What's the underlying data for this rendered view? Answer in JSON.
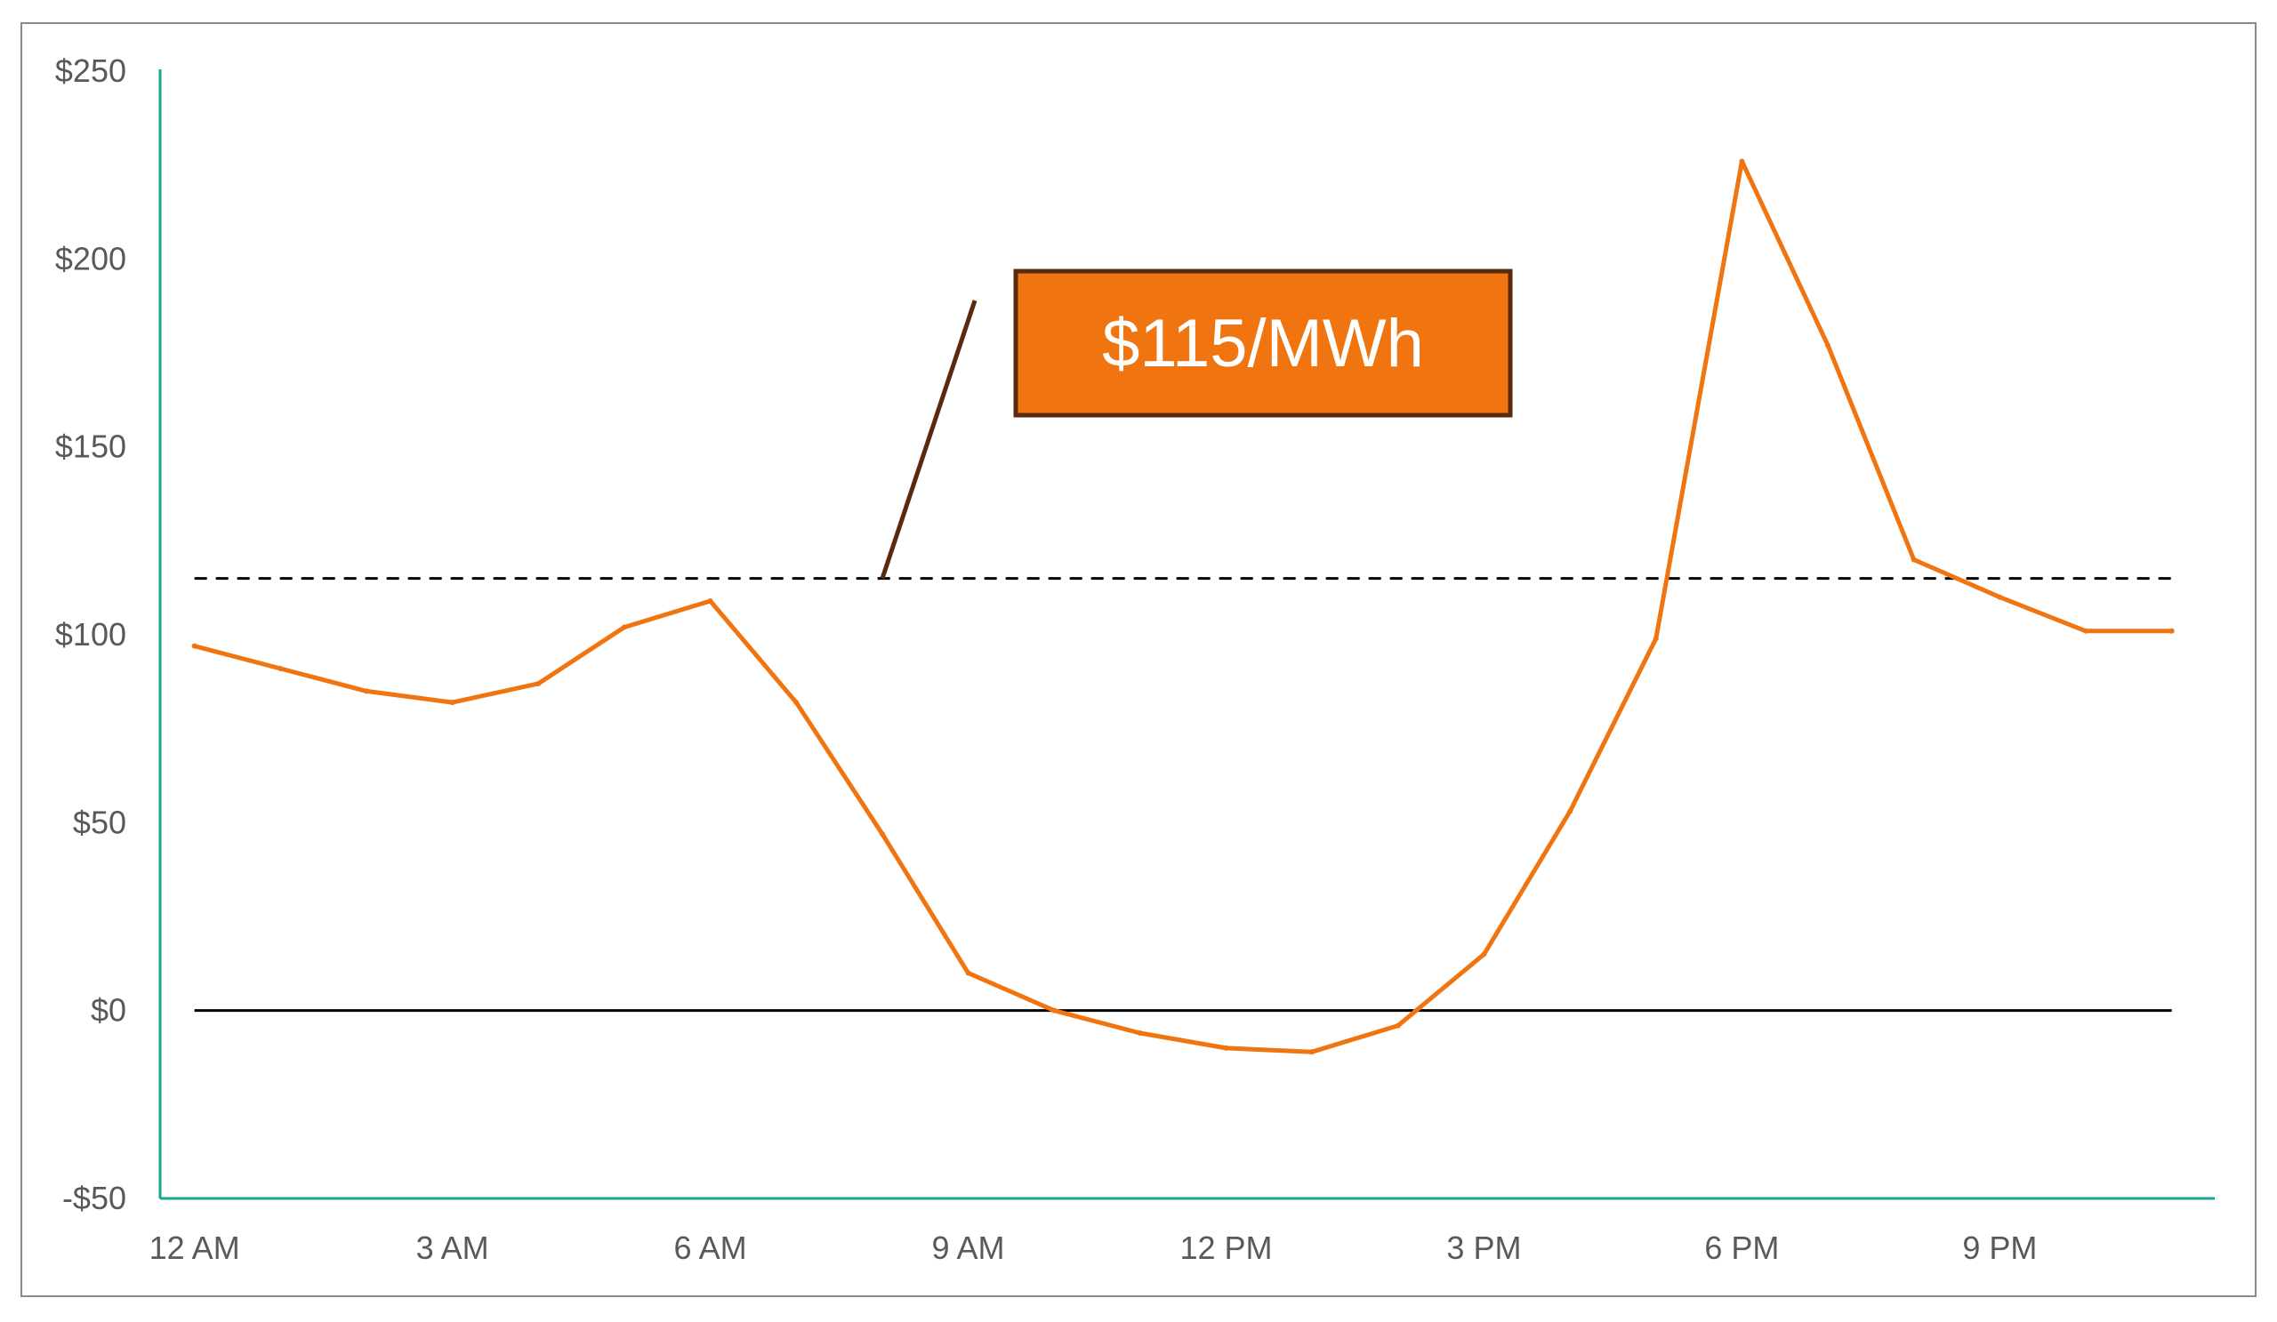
{
  "chart_data": {
    "type": "line",
    "title": "",
    "xlabel": "",
    "ylabel": "",
    "x": [
      0,
      1,
      2,
      3,
      4,
      5,
      6,
      7,
      8,
      9,
      10,
      11,
      12,
      13,
      14,
      15,
      16,
      17,
      18,
      19,
      20,
      21,
      22,
      23
    ],
    "x_tick_labels": [
      {
        "x": 0,
        "label": "12 AM"
      },
      {
        "x": 3,
        "label": "3 AM"
      },
      {
        "x": 6,
        "label": "6 AM"
      },
      {
        "x": 9,
        "label": "9 AM"
      },
      {
        "x": 12,
        "label": "12 PM"
      },
      {
        "x": 15,
        "label": "3 PM"
      },
      {
        "x": 18,
        "label": "6 PM"
      },
      {
        "x": 21,
        "label": "9 PM"
      }
    ],
    "y_ticks": [
      {
        "value": 250,
        "label": "$250"
      },
      {
        "value": 200,
        "label": "$200"
      },
      {
        "value": 150,
        "label": "$150"
      },
      {
        "value": 100,
        "label": "$100"
      },
      {
        "value": 50,
        "label": "$50"
      },
      {
        "value": 0,
        "label": "$0"
      },
      {
        "value": -50,
        "label": "-$50"
      }
    ],
    "ylim": [
      -50,
      250
    ],
    "xlim": [
      -0.4,
      23.5
    ],
    "series": [
      {
        "values": [
          97,
          91,
          85,
          82,
          87,
          102,
          109,
          82,
          47,
          10,
          0,
          -6,
          -10,
          -11,
          -4,
          15,
          53,
          99,
          226,
          177,
          120,
          110,
          101,
          101
        ],
        "color": "#f07511"
      }
    ],
    "reference_line": {
      "value": 115,
      "style": "dashed",
      "color": "#000000"
    },
    "zero_line": {
      "value": 0,
      "color": "#000000"
    },
    "annotation": {
      "label": "$115/MWh",
      "fill": "#f07511",
      "border": "#5a2a0f",
      "text_color": "#ffffff"
    },
    "axis_color": "#1aa39a",
    "grid": false,
    "legend": "none"
  }
}
